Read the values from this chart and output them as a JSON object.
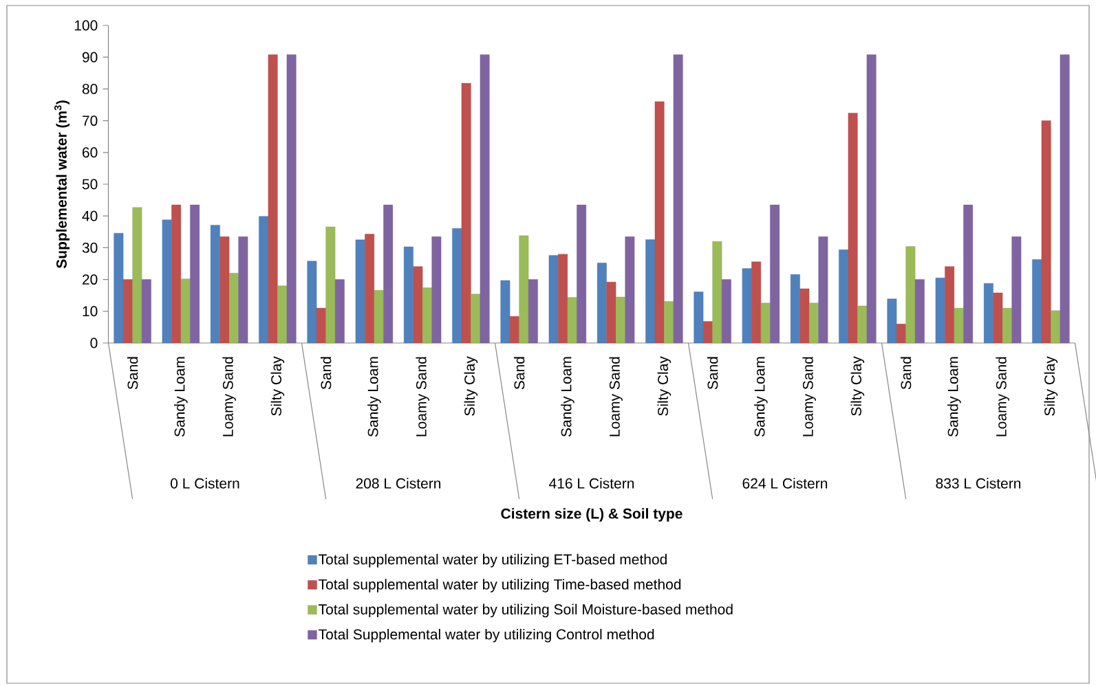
{
  "chart_data": {
    "type": "bar",
    "xlabel": "Cistern size (L) & Soil type",
    "ylabel": "Supplemental water (m$^{3}$)",
    "categories": [
      "Sand",
      "Sandy Loam",
      "Loamy Sand",
      "Silty Clay",
      "Sand",
      "Sandy Loam",
      "Loamy Sand",
      "Silty Clay",
      "Sand",
      "Sandy Loam",
      "Loamy Sand",
      "Silty Clay",
      "Sand",
      "Sandy Loam",
      "Loamy Sand",
      "Silty Clay",
      "Sand",
      "Sandy Loam",
      "Loamy Sand",
      "Silty Clay"
    ],
    "annotations": [
      "0 L Cistern",
      "208 L Cistern",
      "416 L Cistern",
      "624 L Cistern",
      "833 L Cistern"
    ],
    "series": [
      {
        "name": "Total supplemental  water  by utilizing ET-based method",
        "color": "#4f81bd",
        "values": [
          34.6,
          38.8,
          37.1,
          39.9,
          25.8,
          32.5,
          30.3,
          36.1,
          19.7,
          27.6,
          25.2,
          32.6,
          16.1,
          23.5,
          21.6,
          29.4,
          13.9,
          20.5,
          18.8,
          26.3
        ]
      },
      {
        "name": "Total supplemental water  by utilizing Time-based method",
        "color": "#c0504d",
        "values": [
          20,
          43.5,
          33.5,
          90.8,
          11,
          34.3,
          24.1,
          81.8,
          8.4,
          28,
          19.2,
          76,
          6.8,
          25.6,
          17.1,
          72.4,
          6,
          24.1,
          15.8,
          70
        ]
      },
      {
        "name": "Total supplemental water by utilizing Soil Moisture-based method",
        "color": "#9bbb59",
        "values": [
          42.7,
          20.2,
          22,
          18,
          36.6,
          16.6,
          17.4,
          15.4,
          33.8,
          14.4,
          14.5,
          13.1,
          32,
          12.6,
          12.6,
          11.7,
          30.4,
          11,
          11,
          10.2
        ]
      },
      {
        "name": "Total Supplemental water  by utilizing Control method",
        "color": "#8064a2",
        "values": [
          20,
          43.5,
          33.5,
          90.8,
          20,
          43.5,
          33.5,
          90.8,
          20,
          43.5,
          33.5,
          90.8,
          20,
          43.5,
          33.5,
          90.8,
          20,
          43.5,
          33.5,
          90.8
        ]
      }
    ],
    "ylim": [
      0,
      100
    ],
    "yticks": [
      0,
      10,
      20,
      30,
      40,
      50,
      60,
      70,
      80,
      90,
      100
    ],
    "grid": false,
    "legend": "bottom"
  }
}
